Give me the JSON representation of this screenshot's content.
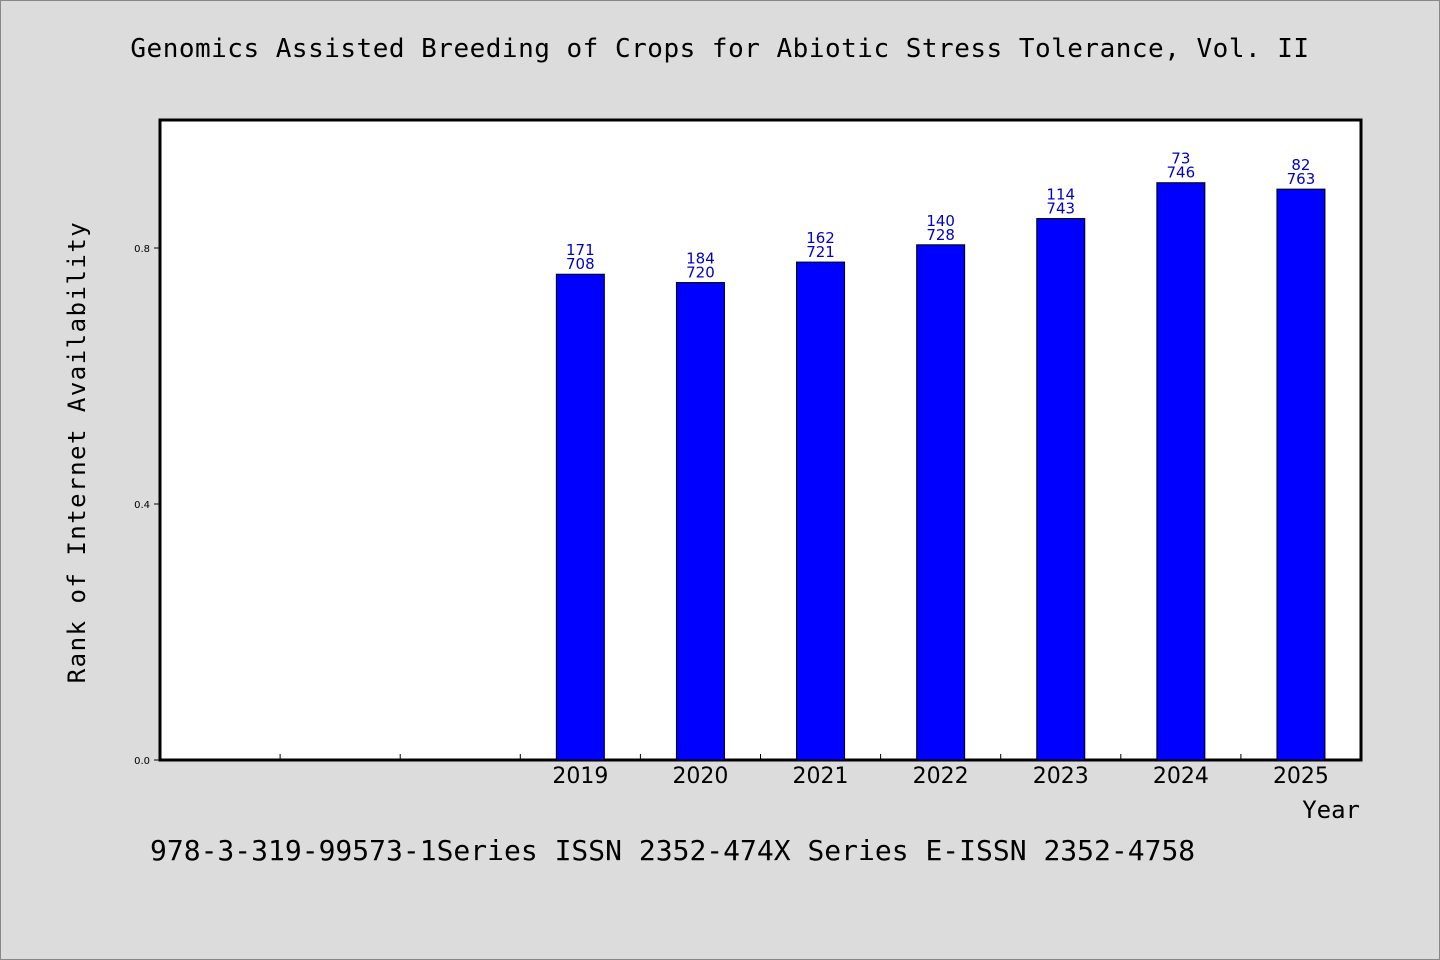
{
  "chart_data": {
    "type": "bar",
    "title": "Genomics Assisted Breeding of Crops for Abiotic Stress Tolerance, Vol. II",
    "xlabel": "Year",
    "ylabel": "Rank of Internet Availability",
    "categories": [
      "",
      "",
      "",
      "2019",
      "2020",
      "2021",
      "2022",
      "2023",
      "2024",
      "2025"
    ],
    "values": [
      null,
      null,
      null,
      0.759,
      0.746,
      0.778,
      0.805,
      0.846,
      0.902,
      0.892
    ],
    "labels_top": [
      "",
      "",
      "",
      "171",
      "184",
      "162",
      "140",
      "114",
      "73",
      "82"
    ],
    "labels_bottom": [
      "",
      "",
      "",
      "708",
      "720",
      "721",
      "728",
      "743",
      "746",
      "763"
    ],
    "ylim": [
      0,
      1.0
    ],
    "yticks": [
      "0.0",
      "0.4",
      "0.8"
    ],
    "ytick_values": [
      0.0,
      0.4,
      0.8
    ],
    "grid": false,
    "bar_color": "#0000ff",
    "label_color": "#0000cc"
  },
  "footer": "978-3-319-99573-1Series ISSN 2352-474X Series E-ISSN 2352-4758"
}
